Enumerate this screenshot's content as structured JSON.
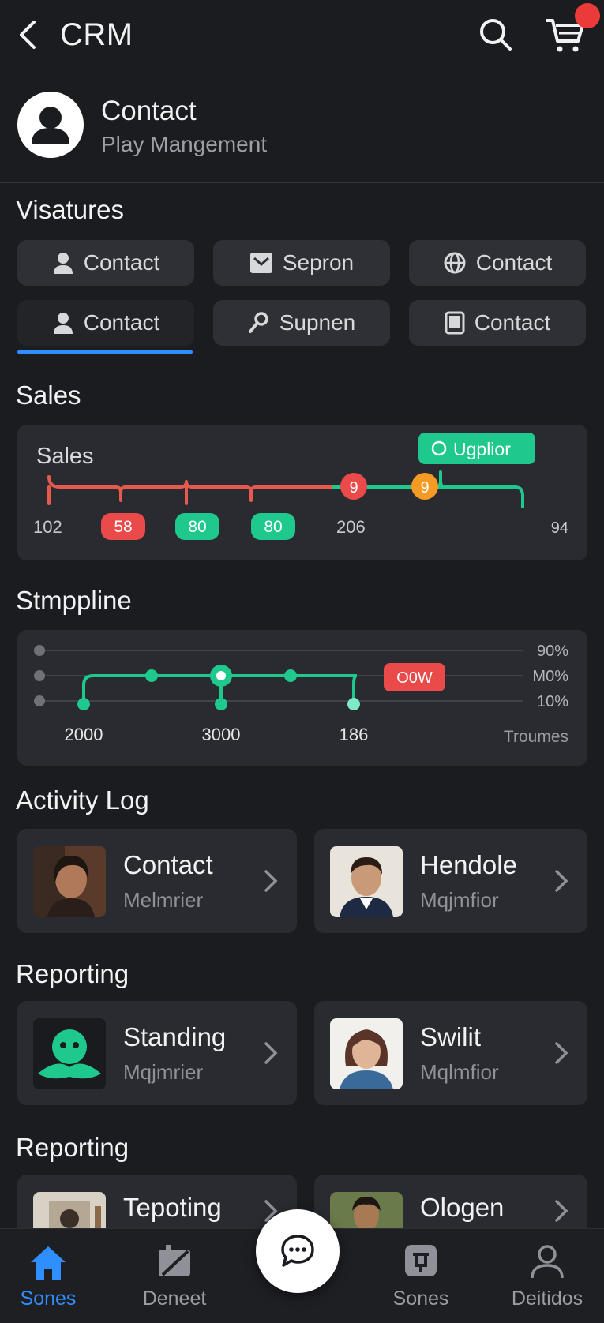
{
  "header": {
    "title": "CRM"
  },
  "profile": {
    "name": "Contact",
    "subtitle": "Play Mangement"
  },
  "features": {
    "title": "Visatures",
    "chips": [
      {
        "label": "Contact",
        "icon": "person-icon"
      },
      {
        "label": "Sepron",
        "icon": "mail-icon"
      },
      {
        "label": "Contact",
        "icon": "globe-icon"
      },
      {
        "label": "Contact",
        "icon": "person-icon",
        "active": true
      },
      {
        "label": "Supnen",
        "icon": "key-icon"
      },
      {
        "label": "Contact",
        "icon": "tablet-icon"
      }
    ]
  },
  "sales": {
    "section_title": "Sales",
    "card_title": "Sales",
    "tag": "Ugplior",
    "labels": [
      "102",
      "58",
      "80",
      "80",
      "206",
      "9",
      "9",
      "94"
    ]
  },
  "pipeline": {
    "section_title": "Stmppline",
    "levels": [
      "90%",
      "M0%",
      "10%"
    ],
    "badge": "O0W",
    "x_labels": [
      "2000",
      "3000",
      "186"
    ],
    "corner_label": "Troumes"
  },
  "activity": {
    "title": "Activity Log",
    "tiles": [
      {
        "title": "Contact",
        "subtitle": "Melmrier"
      },
      {
        "title": "Hendole",
        "subtitle": "Mqjmfior"
      }
    ]
  },
  "reporting1": {
    "title": "Reporting",
    "tiles": [
      {
        "title": "Standing",
        "subtitle": "Mqjmrier"
      },
      {
        "title": "Swilit",
        "subtitle": "Mqlmfior"
      }
    ]
  },
  "reporting2": {
    "title": "Reporting",
    "tiles": [
      {
        "title": "Tepoting",
        "subtitle": ""
      },
      {
        "title": "Ologen",
        "subtitle": ""
      }
    ]
  },
  "nav": {
    "items": [
      {
        "label": "Sones",
        "active": true
      },
      {
        "label": "Deneet"
      },
      {
        "label": "Sones"
      },
      {
        "label": "Deitidos"
      }
    ]
  },
  "colors": {
    "accent": "#2f8fff",
    "green": "#1fc98e",
    "red": "#ea4a4a",
    "orange": "#f59a23"
  }
}
